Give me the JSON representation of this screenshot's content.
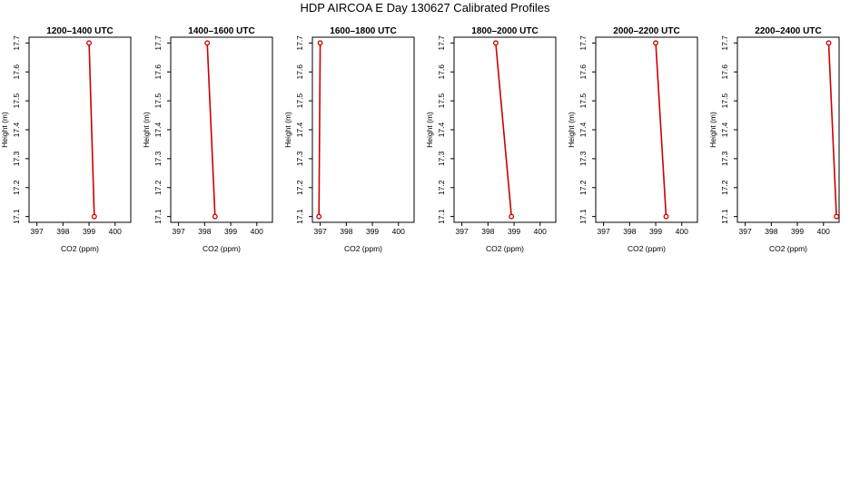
{
  "title": "HDP AIRCOA E  Day 130627  Calibrated Profiles",
  "colors": {
    "line": "#cc0000",
    "axis": "#000000"
  },
  "chart_data": [
    {
      "type": "line",
      "title": "1200–1400 UTC",
      "xlabel": "CO2 (ppm)",
      "ylabel": "Height (m)",
      "xlim": [
        396.7,
        400.6
      ],
      "ylim": [
        17.08,
        17.72
      ],
      "xticks": [
        397,
        398,
        399,
        400
      ],
      "yticks": [
        17.1,
        17.2,
        17.3,
        17.4,
        17.5,
        17.6,
        17.7
      ],
      "grid": false,
      "series": [
        {
          "points": [
            {
              "x": 399.2,
              "y": 17.1
            },
            {
              "x": 399.0,
              "y": 17.7
            }
          ]
        }
      ]
    },
    {
      "type": "line",
      "title": "1400–1600 UTC",
      "xlabel": "CO2 (ppm)",
      "ylabel": "Height (m)",
      "xlim": [
        396.7,
        400.6
      ],
      "ylim": [
        17.08,
        17.72
      ],
      "xticks": [
        397,
        398,
        399,
        400
      ],
      "yticks": [
        17.1,
        17.2,
        17.3,
        17.4,
        17.5,
        17.6,
        17.7
      ],
      "grid": false,
      "series": [
        {
          "points": [
            {
              "x": 398.4,
              "y": 17.1
            },
            {
              "x": 398.1,
              "y": 17.7
            }
          ]
        }
      ]
    },
    {
      "type": "line",
      "title": "1600–1800 UTC",
      "xlabel": "CO2 (ppm)",
      "ylabel": "Height (m)",
      "xlim": [
        396.7,
        400.6
      ],
      "ylim": [
        17.08,
        17.72
      ],
      "xticks": [
        397,
        398,
        399,
        400
      ],
      "yticks": [
        17.1,
        17.2,
        17.3,
        17.4,
        17.5,
        17.6,
        17.7
      ],
      "grid": false,
      "series": [
        {
          "points": [
            {
              "x": 396.95,
              "y": 17.1
            },
            {
              "x": 397.0,
              "y": 17.7
            }
          ]
        }
      ]
    },
    {
      "type": "line",
      "title": "1800–2000 UTC",
      "xlabel": "CO2 (ppm)",
      "ylabel": "Height (m)",
      "xlim": [
        396.7,
        400.6
      ],
      "ylim": [
        17.08,
        17.72
      ],
      "xticks": [
        397,
        398,
        399,
        400
      ],
      "yticks": [
        17.1,
        17.2,
        17.3,
        17.4,
        17.5,
        17.6,
        17.7
      ],
      "grid": false,
      "series": [
        {
          "points": [
            {
              "x": 398.9,
              "y": 17.1
            },
            {
              "x": 398.3,
              "y": 17.7
            }
          ]
        }
      ]
    },
    {
      "type": "line",
      "title": "2000–2200 UTC",
      "xlabel": "CO2 (ppm)",
      "ylabel": "Height (m)",
      "xlim": [
        396.7,
        400.6
      ],
      "ylim": [
        17.08,
        17.72
      ],
      "xticks": [
        397,
        398,
        399,
        400
      ],
      "yticks": [
        17.1,
        17.2,
        17.3,
        17.4,
        17.5,
        17.6,
        17.7
      ],
      "grid": false,
      "series": [
        {
          "points": [
            {
              "x": 399.4,
              "y": 17.1
            },
            {
              "x": 399.0,
              "y": 17.7
            }
          ]
        }
      ]
    },
    {
      "type": "line",
      "title": "2200–2400 UTC",
      "xlabel": "CO2 (ppm)",
      "ylabel": "Height (m)",
      "xlim": [
        396.7,
        400.6
      ],
      "ylim": [
        17.08,
        17.72
      ],
      "xticks": [
        397,
        398,
        399,
        400
      ],
      "yticks": [
        17.1,
        17.2,
        17.3,
        17.4,
        17.5,
        17.6,
        17.7
      ],
      "grid": false,
      "series": [
        {
          "points": [
            {
              "x": 400.5,
              "y": 17.1
            },
            {
              "x": 400.2,
              "y": 17.7
            }
          ]
        }
      ]
    }
  ]
}
